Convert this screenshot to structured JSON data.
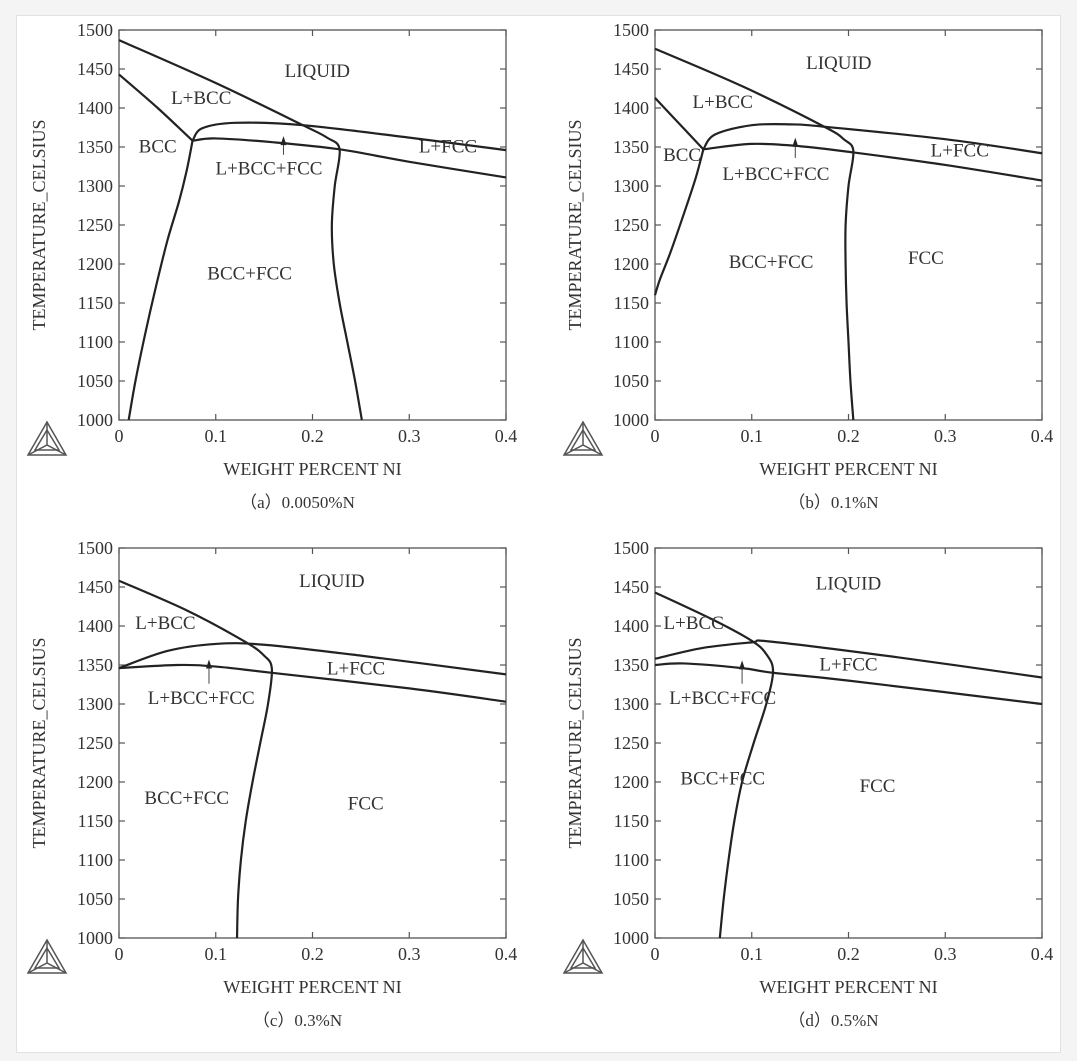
{
  "chart_data": [
    {
      "type": "line",
      "caption": "（a）0.0050%N",
      "xlabel": "WEIGHT PERCENT NI",
      "ylabel": "TEMPERATURE_CELSIUS",
      "xlim": [
        0,
        0.4
      ],
      "ylim": [
        1000,
        1500
      ],
      "xticks": [
        "0",
        "0.1",
        "0.2",
        "0.3",
        "0.4"
      ],
      "yticks": [
        "1000",
        "1050",
        "1100",
        "1150",
        "1200",
        "1250",
        "1300",
        "1350",
        "1400",
        "1450",
        "1500"
      ],
      "grid": false,
      "line_color": "#222222",
      "curves": [
        [
          [
            0,
            1487
          ],
          [
            0.1,
            1432
          ],
          [
            0.19,
            1378
          ],
          [
            0.215,
            1362
          ],
          [
            0.228,
            1347
          ],
          [
            0.223,
            1300
          ],
          [
            0.22,
            1250
          ],
          [
            0.222,
            1200
          ],
          [
            0.228,
            1150
          ],
          [
            0.236,
            1100
          ],
          [
            0.244,
            1050
          ],
          [
            0.251,
            1000
          ]
        ],
        [
          [
            0,
            1443
          ],
          [
            0.04,
            1400
          ],
          [
            0.076,
            1358
          ]
        ],
        [
          [
            0.076,
            1358
          ],
          [
            0.07,
            1320
          ],
          [
            0.062,
            1280
          ],
          [
            0.05,
            1230
          ],
          [
            0.038,
            1170
          ],
          [
            0.027,
            1110
          ],
          [
            0.017,
            1050
          ],
          [
            0.01,
            1000
          ]
        ],
        [
          [
            0.076,
            1358
          ],
          [
            0.086,
            1374
          ],
          [
            0.12,
            1381
          ],
          [
            0.19,
            1378
          ],
          [
            0.3,
            1362
          ],
          [
            0.4,
            1346
          ]
        ],
        [
          [
            0.076,
            1358
          ],
          [
            0.1,
            1361
          ],
          [
            0.16,
            1356
          ],
          [
            0.228,
            1347
          ],
          [
            0.3,
            1331
          ],
          [
            0.4,
            1311
          ]
        ]
      ],
      "arrow": {
        "x": 0.17,
        "from": 1340,
        "to": 1364
      },
      "phase_labels": [
        {
          "text": "LIQUID",
          "x": 0.205,
          "y": 1440
        },
        {
          "text": "L+BCC",
          "x": 0.085,
          "y": 1405
        },
        {
          "text": "BCC",
          "x": 0.04,
          "y": 1343
        },
        {
          "text": "L+BCC+FCC",
          "x": 0.155,
          "y": 1315
        },
        {
          "text": "BCC+FCC",
          "x": 0.135,
          "y": 1180
        },
        {
          "text": "L+FCC",
          "x": 0.34,
          "y": 1343
        }
      ]
    },
    {
      "type": "line",
      "caption": "（b）0.1%N",
      "xlabel": "WEIGHT PERCENT NI",
      "ylabel": "TEMPERATURE_CELSIUS",
      "xlim": [
        0,
        0.4
      ],
      "ylim": [
        1000,
        1500
      ],
      "xticks": [
        "0",
        "0.1",
        "0.2",
        "0.3",
        "0.4"
      ],
      "yticks": [
        "1000",
        "1050",
        "1100",
        "1150",
        "1200",
        "1250",
        "1300",
        "1350",
        "1400",
        "1450",
        "1500"
      ],
      "grid": false,
      "line_color": "#222222",
      "curves": [
        [
          [
            0,
            1476
          ],
          [
            0.09,
            1428
          ],
          [
            0.175,
            1376
          ],
          [
            0.195,
            1360
          ],
          [
            0.205,
            1345
          ],
          [
            0.2,
            1300
          ],
          [
            0.197,
            1250
          ],
          [
            0.197,
            1200
          ],
          [
            0.198,
            1150
          ],
          [
            0.2,
            1100
          ],
          [
            0.202,
            1050
          ],
          [
            0.205,
            1000
          ]
        ],
        [
          [
            0,
            1413
          ],
          [
            0.025,
            1380
          ],
          [
            0.05,
            1347
          ]
        ],
        [
          [
            0.05,
            1347
          ],
          [
            0.042,
            1310
          ],
          [
            0.03,
            1265
          ],
          [
            0.016,
            1215
          ],
          [
            0.005,
            1180
          ],
          [
            0,
            1160
          ]
        ],
        [
          [
            0.05,
            1347
          ],
          [
            0.062,
            1366
          ],
          [
            0.1,
            1378
          ],
          [
            0.14,
            1379
          ],
          [
            0.175,
            1376
          ],
          [
            0.3,
            1360
          ],
          [
            0.4,
            1342
          ]
        ],
        [
          [
            0.05,
            1347
          ],
          [
            0.1,
            1354
          ],
          [
            0.15,
            1351
          ],
          [
            0.205,
            1343
          ],
          [
            0.3,
            1327
          ],
          [
            0.4,
            1307
          ]
        ]
      ],
      "arrow": {
        "x": 0.145,
        "from": 1336,
        "to": 1362
      },
      "phase_labels": [
        {
          "text": "LIQUID",
          "x": 0.19,
          "y": 1450
        },
        {
          "text": "L+BCC",
          "x": 0.07,
          "y": 1400
        },
        {
          "text": "BCC",
          "x": 0.028,
          "y": 1332
        },
        {
          "text": "L+BCC+FCC",
          "x": 0.125,
          "y": 1308
        },
        {
          "text": "BCC+FCC",
          "x": 0.12,
          "y": 1195
        },
        {
          "text": "FCC",
          "x": 0.28,
          "y": 1200
        },
        {
          "text": "L+FCC",
          "x": 0.315,
          "y": 1338
        }
      ]
    },
    {
      "type": "line",
      "caption": "（c）0.3%N",
      "xlabel": "WEIGHT PERCENT NI",
      "ylabel": "TEMPERATURE_CELSIUS",
      "xlim": [
        0,
        0.4
      ],
      "ylim": [
        1000,
        1500
      ],
      "xticks": [
        "0",
        "0.1",
        "0.2",
        "0.3",
        "0.4"
      ],
      "yticks": [
        "1000",
        "1050",
        "1100",
        "1150",
        "1200",
        "1250",
        "1300",
        "1350",
        "1400",
        "1450",
        "1500"
      ],
      "grid": false,
      "line_color": "#222222",
      "curves": [
        [
          [
            0,
            1458
          ],
          [
            0.07,
            1420
          ],
          [
            0.13,
            1380
          ],
          [
            0.15,
            1362
          ],
          [
            0.158,
            1345
          ],
          [
            0.154,
            1300
          ],
          [
            0.146,
            1250
          ],
          [
            0.138,
            1200
          ],
          [
            0.131,
            1150
          ],
          [
            0.126,
            1100
          ],
          [
            0.123,
            1050
          ],
          [
            0.122,
            1000
          ]
        ],
        [
          [
            0,
            1346
          ],
          [
            0.05,
            1368
          ],
          [
            0.1,
            1377
          ],
          [
            0.15,
            1376
          ],
          [
            0.25,
            1362
          ],
          [
            0.4,
            1338
          ]
        ],
        [
          [
            0,
            1346
          ],
          [
            0.06,
            1350
          ],
          [
            0.1,
            1348
          ],
          [
            0.158,
            1340
          ],
          [
            0.3,
            1320
          ],
          [
            0.4,
            1303
          ]
        ]
      ],
      "arrow": {
        "x": 0.093,
        "from": 1326,
        "to": 1357
      },
      "phase_labels": [
        {
          "text": "LIQUID",
          "x": 0.22,
          "y": 1450
        },
        {
          "text": "L+BCC",
          "x": 0.048,
          "y": 1396
        },
        {
          "text": "L+BCC+FCC",
          "x": 0.085,
          "y": 1300
        },
        {
          "text": "BCC+FCC",
          "x": 0.07,
          "y": 1172
        },
        {
          "text": "FCC",
          "x": 0.255,
          "y": 1165
        },
        {
          "text": "L+FCC",
          "x": 0.245,
          "y": 1338
        }
      ]
    },
    {
      "type": "line",
      "caption": "（d）0.5%N",
      "xlabel": "WEIGHT PERCENT NI",
      "ylabel": "TEMPERATURE_CELSIUS",
      "xlim": [
        0,
        0.4
      ],
      "ylim": [
        1000,
        1500
      ],
      "xticks": [
        "0",
        "0.1",
        "0.2",
        "0.3",
        "0.4"
      ],
      "yticks": [
        "1000",
        "1050",
        "1100",
        "1150",
        "1200",
        "1250",
        "1300",
        "1350",
        "1400",
        "1450",
        "1500"
      ],
      "grid": false,
      "line_color": "#222222",
      "curves": [
        [
          [
            0,
            1443
          ],
          [
            0.06,
            1408
          ],
          [
            0.1,
            1381
          ],
          [
            0.115,
            1364
          ],
          [
            0.122,
            1342
          ],
          [
            0.115,
            1300
          ],
          [
            0.102,
            1250
          ],
          [
            0.09,
            1200
          ],
          [
            0.082,
            1150
          ],
          [
            0.076,
            1100
          ],
          [
            0.071,
            1050
          ],
          [
            0.067,
            1000
          ]
        ],
        [
          [
            0,
            1358
          ],
          [
            0.05,
            1372
          ],
          [
            0.1,
            1379
          ],
          [
            0.12,
            1380
          ],
          [
            0.25,
            1360
          ],
          [
            0.4,
            1334
          ]
        ],
        [
          [
            0,
            1350
          ],
          [
            0.03,
            1352
          ],
          [
            0.09,
            1346
          ],
          [
            0.122,
            1340
          ],
          [
            0.2,
            1330
          ],
          [
            0.4,
            1300
          ]
        ]
      ],
      "arrow": {
        "x": 0.09,
        "from": 1326,
        "to": 1356
      },
      "phase_labels": [
        {
          "text": "LIQUID",
          "x": 0.2,
          "y": 1447
        },
        {
          "text": "L+BCC",
          "x": 0.04,
          "y": 1396
        },
        {
          "text": "L+BCC+FCC",
          "x": 0.07,
          "y": 1300
        },
        {
          "text": "BCC+FCC",
          "x": 0.07,
          "y": 1197
        },
        {
          "text": "FCC",
          "x": 0.23,
          "y": 1187
        },
        {
          "text": "L+FCC",
          "x": 0.2,
          "y": 1343
        }
      ]
    }
  ]
}
